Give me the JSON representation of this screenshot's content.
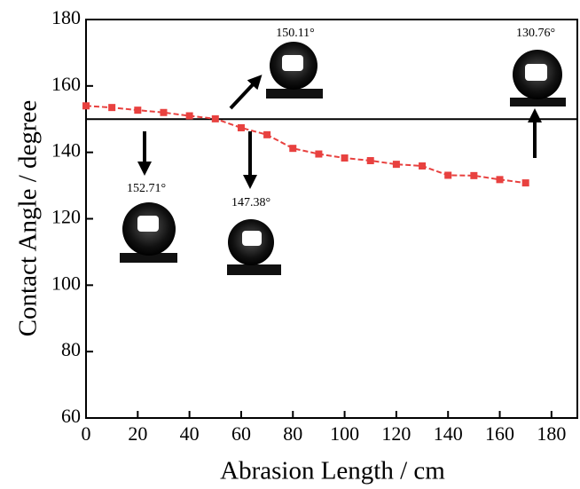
{
  "chart_data": {
    "type": "line",
    "x_label": "Abrasion Length / cm",
    "y_label": "Contact Angle / degree",
    "x": [
      0,
      10,
      20,
      30,
      40,
      50,
      60,
      70,
      80,
      90,
      100,
      110,
      120,
      130,
      140,
      150,
      160,
      170
    ],
    "series": [
      {
        "color": "#e8413f",
        "values": [
          154,
          153.5,
          152.7,
          152,
          151,
          150.1,
          147.4,
          145.3,
          141.2,
          139.5,
          138.3,
          137.5,
          136.4,
          135.9,
          133.1,
          133,
          131.8,
          130.8
        ]
      }
    ],
    "xlim": [
      0,
      190
    ],
    "ylim": [
      60,
      180
    ],
    "xticks": [
      0,
      20,
      40,
      60,
      80,
      100,
      120,
      140,
      160,
      180
    ],
    "yticks": [
      60,
      80,
      100,
      120,
      140,
      160,
      180
    ],
    "reference_line": 150,
    "annotations": [
      "152.71°",
      "150.11°",
      "147.38°",
      "130.76°"
    ]
  }
}
